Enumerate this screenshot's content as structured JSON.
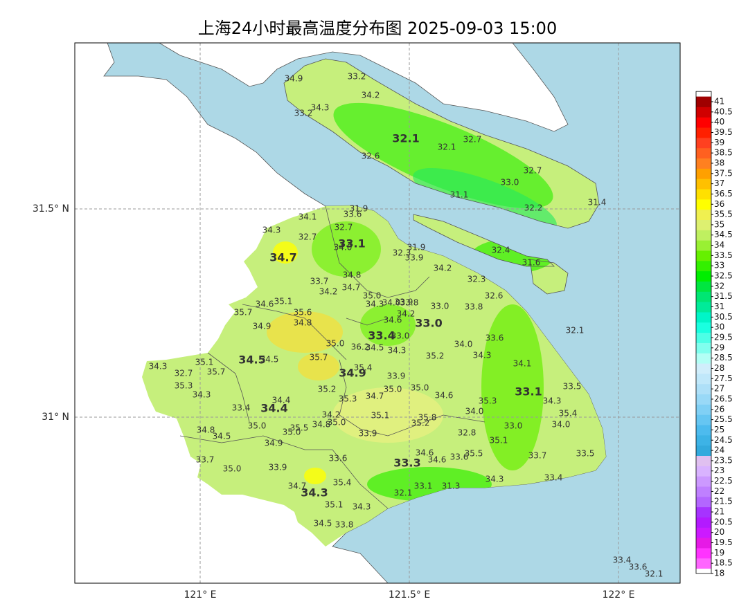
{
  "title": "上海24小时最高温度分布图 2025-09-03 15:00",
  "x_axis_labels": [
    "121° E",
    "121.5° E",
    "122° E"
  ],
  "y_axis_labels": [
    "31.5° N",
    "31° N"
  ],
  "colorbar": {
    "ticks": [
      18,
      18.5,
      19,
      19.5,
      20,
      20.5,
      21,
      21.5,
      22,
      22.5,
      23,
      23.5,
      24,
      24.5,
      25,
      25.5,
      26,
      26.5,
      27,
      27.5,
      28,
      28.5,
      29,
      29.5,
      30,
      30.5,
      31,
      31.5,
      32,
      32.5,
      33,
      33.5,
      34,
      34.5,
      35,
      35.5,
      36,
      36.5,
      37,
      37.5,
      38,
      38.5,
      39,
      39.5,
      40,
      40.5,
      41
    ],
    "colors": [
      "#ff66ff",
      "#ff33ff",
      "#e61ae6",
      "#cc1aff",
      "#b31aff",
      "#a633ff",
      "#b366ff",
      "#bf80ff",
      "#cc99ff",
      "#d9b3ff",
      "#e0c0f0",
      "#33aadd",
      "#3db3e6",
      "#4dbbee",
      "#66c6f2",
      "#80d0f5",
      "#99d9f7",
      "#aee0f8",
      "#c0e8fa",
      "#d0eefb",
      "#b3fff5",
      "#80ffee",
      "#4dffe6",
      "#1affe0",
      "#00f5c8",
      "#00eb99",
      "#00e673",
      "#00e640",
      "#00ee00",
      "#33f000",
      "#66f000",
      "#99f033",
      "#bff060",
      "#ddf070",
      "#f0f050",
      "#ffff00",
      "#ffe000",
      "#ffc000",
      "#ffa000",
      "#ff8020",
      "#ff6020",
      "#ff4020",
      "#ff2000",
      "#ff0000",
      "#d00000",
      "#a00000"
    ]
  },
  "station_labels": [
    "34.9",
    "33.2",
    "34.2",
    "34.3",
    "33.2",
    "32.1",
    "32.1",
    "32.7",
    "32.6",
    "32.7",
    "33.0",
    "31.1",
    "32.2",
    "31.4",
    "32.4",
    "31.6",
    "31.9",
    "33.6",
    "34.1",
    "34.3",
    "32.7",
    "32.7",
    "33.1",
    "34.0",
    "31.9",
    "32.3",
    "33.9",
    "34.7",
    "34.2",
    "33.7",
    "34.8",
    "34.7",
    "34.2",
    "32.3",
    "32.6",
    "35.0",
    "34.6",
    "35.1",
    "34.3",
    "34.0",
    "33.9",
    "33.8",
    "33.0",
    "33.8",
    "35.7",
    "35.6",
    "34.2",
    "34.6",
    "34.8",
    "34.9",
    "33.0",
    "32.1",
    "33.4",
    "33.0",
    "33.6",
    "35.0",
    "36.2",
    "34.5",
    "34.0",
    "34.3",
    "34.3",
    "35.2",
    "34.5",
    "34.5",
    "35.7",
    "34.1",
    "35.1",
    "34.3",
    "35.4",
    "34.9",
    "32.7",
    "35.7",
    "33.9",
    "35.3",
    "35.2",
    "35.0",
    "35.0",
    "33.5",
    "33.1",
    "34.3",
    "34.7",
    "35.3",
    "34.6",
    "35.3",
    "34.3",
    "34.4",
    "34.4",
    "33.4",
    "34.0",
    "35.4",
    "35.1",
    "35.8",
    "34.2",
    "35.0",
    "34.8",
    "35.0",
    "35.2",
    "34.0",
    "33.0",
    "35.5",
    "35.0",
    "34.8",
    "34.5",
    "33.9",
    "32.8",
    "35.1",
    "34.9",
    "34.6",
    "35.5",
    "33.6",
    "34.6",
    "33.6",
    "33.7",
    "33.7",
    "33.5",
    "33.3",
    "35.0",
    "33.9",
    "34.7",
    "35.4",
    "34.3",
    "33.4",
    "33.1",
    "31.3",
    "34.3",
    "32.1",
    "35.1",
    "34.3",
    "34.5",
    "33.8",
    "33.4",
    "33.6",
    "32.1"
  ]
}
